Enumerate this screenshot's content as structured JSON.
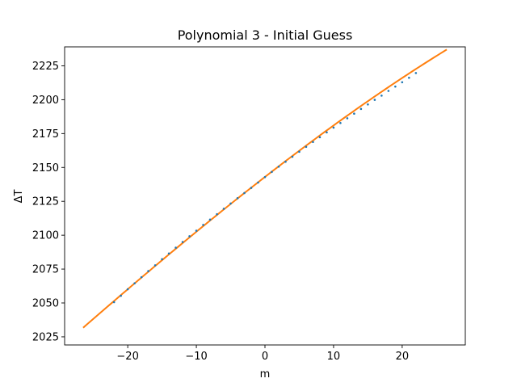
{
  "chart_data": {
    "type": "scatter",
    "title": "Polynomial 3 - Initial Guess",
    "xlabel": "m",
    "ylabel": "ΔT",
    "xlim": [
      -29.2,
      29.2
    ],
    "ylim": [
      2019,
      2239
    ],
    "x_ticks": [
      -20,
      -10,
      0,
      10,
      20
    ],
    "x_tick_labels": [
      "−20",
      "−10",
      "0",
      "10",
      "20"
    ],
    "y_ticks": [
      2025,
      2050,
      2075,
      2100,
      2125,
      2150,
      2175,
      2200,
      2225
    ],
    "y_tick_labels": [
      "2025",
      "2050",
      "2075",
      "2100",
      "2125",
      "2150",
      "2175",
      "2200",
      "2225"
    ],
    "grid": false,
    "legend": "none",
    "series": [
      {
        "kind": "points",
        "color": "#1f77b4",
        "x": [
          -22,
          -21,
          -20,
          -19,
          -18,
          -17,
          -16,
          -15,
          -14,
          -13,
          -12,
          -11,
          -10,
          -9,
          -8,
          -7,
          -6,
          -5,
          -4,
          -3,
          -2,
          -1,
          0,
          1,
          2,
          3,
          4,
          5,
          6,
          7,
          8,
          9,
          10,
          11,
          12,
          13,
          14,
          15,
          16,
          17,
          18,
          19,
          20,
          21,
          22
        ],
        "y": [
          2050.6,
          2055.3,
          2060.1,
          2064.5,
          2069.0,
          2073.5,
          2077.8,
          2082.3,
          2086.5,
          2090.8,
          2095.0,
          2099.2,
          2103.3,
          2107.6,
          2111.5,
          2115.5,
          2119.5,
          2123.4,
          2127.3,
          2131.1,
          2134.9,
          2138.9,
          2142.9,
          2146.7,
          2150.6,
          2154.2,
          2157.9,
          2161.6,
          2165.2,
          2168.8,
          2172.3,
          2175.9,
          2179.4,
          2182.8,
          2186.3,
          2189.7,
          2193.2,
          2196.5,
          2199.9,
          2203.0,
          2206.5,
          2209.7,
          2212.9,
          2216.2,
          2219.7
        ]
      },
      {
        "kind": "line",
        "color": "#ff7f0e",
        "coefficients": [
          2143.0,
          3.93,
          -0.0123,
          -8e-05
        ],
        "x_range": [
          -26.5,
          26.5
        ]
      }
    ]
  }
}
